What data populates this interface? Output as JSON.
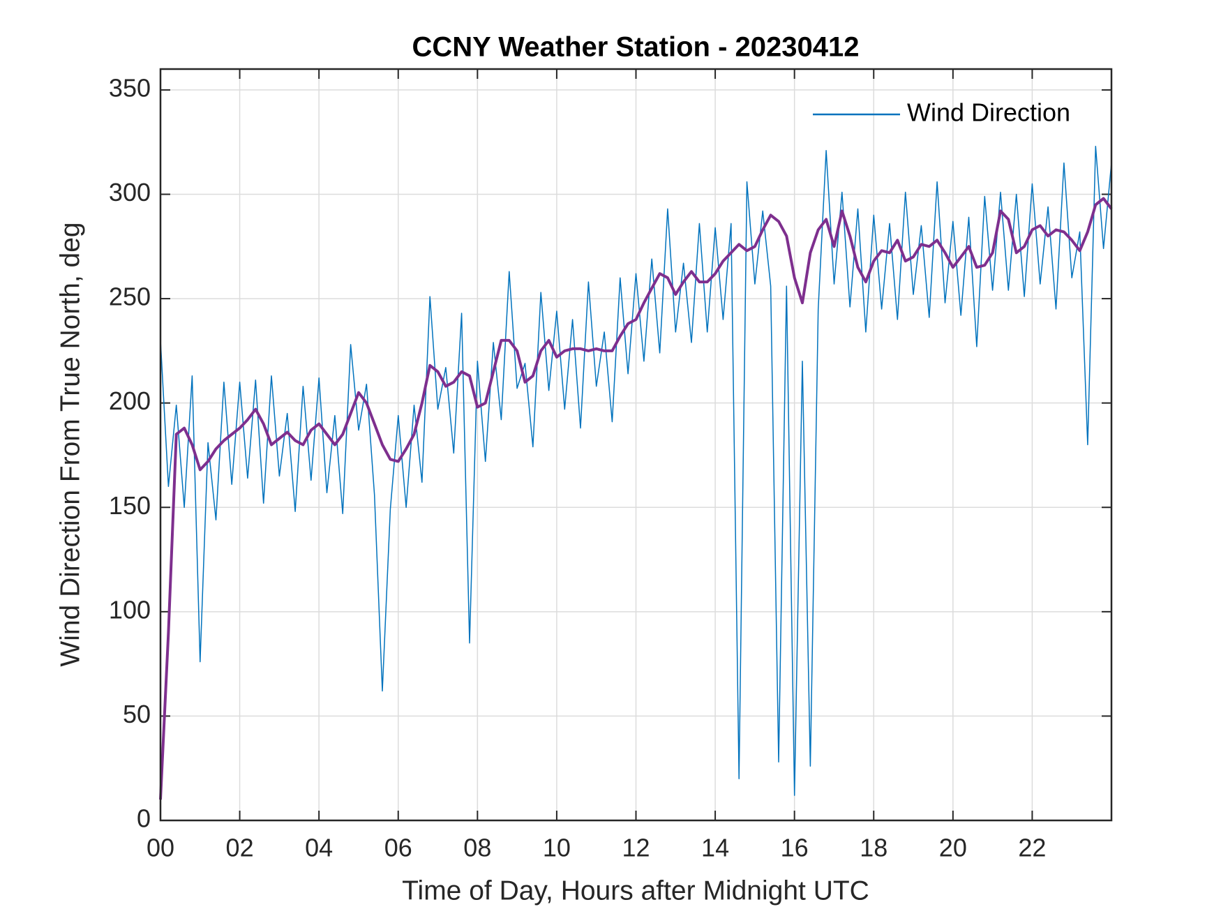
{
  "chart_data": {
    "type": "line",
    "title": "CCNY Weather Station - 20230412",
    "xlabel": "Time of Day, Hours after Midnight UTC",
    "ylabel": "Wind Direction From True North, deg",
    "x": [
      0,
      0.2,
      0.4,
      0.6,
      0.8,
      1,
      1.2,
      1.4,
      1.6,
      1.8,
      2,
      2.2,
      2.4,
      2.6,
      2.8,
      3,
      3.2,
      3.4,
      3.6,
      3.8,
      4,
      4.2,
      4.4,
      4.6,
      4.8,
      5,
      5.2,
      5.4,
      5.6,
      5.8,
      6,
      6.2,
      6.4,
      6.6,
      6.8,
      7,
      7.2,
      7.4,
      7.6,
      7.8,
      8,
      8.2,
      8.4,
      8.6,
      8.8,
      9,
      9.2,
      9.4,
      9.6,
      9.8,
      10,
      10.2,
      10.4,
      10.6,
      10.8,
      11,
      11.2,
      11.4,
      11.6,
      11.8,
      12,
      12.2,
      12.4,
      12.6,
      12.8,
      13,
      13.2,
      13.4,
      13.6,
      13.8,
      14,
      14.2,
      14.4,
      14.6,
      14.8,
      15,
      15.2,
      15.4,
      15.6,
      15.8,
      16,
      16.2,
      16.4,
      16.6,
      16.8,
      17,
      17.2,
      17.4,
      17.6,
      17.8,
      18,
      18.2,
      18.4,
      18.6,
      18.8,
      19,
      19.2,
      19.4,
      19.6,
      19.8,
      20,
      20.2,
      20.4,
      20.6,
      20.8,
      21,
      21.2,
      21.4,
      21.6,
      21.8,
      22,
      22.2,
      22.4,
      22.6,
      22.8,
      23,
      23.2,
      23.4,
      23.6,
      23.8,
      24
    ],
    "series": [
      {
        "name": "Wind Direction",
        "color": "#0072bd",
        "width": 1.5,
        "values": [
          230,
          160,
          199,
          150,
          213,
          76,
          181,
          144,
          210,
          161,
          210,
          164,
          211,
          152,
          213,
          165,
          195,
          148,
          208,
          163,
          212,
          157,
          194,
          147,
          228,
          187,
          209,
          156,
          62,
          149,
          194,
          150,
          199,
          162,
          251,
          197,
          217,
          176,
          243,
          85,
          220,
          172,
          229,
          192,
          263,
          207,
          219,
          179,
          253,
          206,
          244,
          197,
          240,
          188,
          258,
          208,
          234,
          191,
          260,
          214,
          262,
          220,
          269,
          224,
          293,
          234,
          267,
          229,
          286,
          234,
          284,
          240,
          286,
          20,
          306,
          257,
          292,
          256,
          28,
          256,
          12,
          220,
          26,
          245,
          321,
          257,
          301,
          246,
          293,
          234,
          290,
          245,
          286,
          240,
          301,
          252,
          285,
          241,
          306,
          248,
          287,
          242,
          289,
          227,
          299,
          254,
          301,
          254,
          300,
          251,
          305,
          257,
          294,
          245,
          315,
          260,
          282,
          180,
          323,
          274,
          315
        ]
      },
      {
        "color": "#7e2f8e",
        "width": 4,
        "values": [
          10,
          90,
          185,
          188,
          180,
          168,
          172,
          178,
          182,
          185,
          188,
          192,
          197,
          190,
          180,
          183,
          186,
          182,
          180,
          187,
          190,
          185,
          180,
          185,
          195,
          205,
          200,
          190,
          180,
          173,
          172,
          178,
          185,
          200,
          218,
          215,
          208,
          210,
          215,
          213,
          198,
          200,
          215,
          230,
          230,
          225,
          210,
          213,
          225,
          230,
          222,
          225,
          226,
          226,
          225,
          226,
          225,
          225,
          232,
          238,
          240,
          248,
          255,
          262,
          260,
          252,
          258,
          263,
          258,
          258,
          262,
          268,
          272,
          276,
          273,
          275,
          283,
          290,
          287,
          280,
          260,
          248,
          272,
          283,
          288,
          275,
          292,
          280,
          265,
          258,
          268,
          273,
          272,
          278,
          268,
          270,
          276,
          275,
          278,
          272,
          265,
          270,
          275,
          265,
          266,
          272,
          292,
          288,
          272,
          275,
          283,
          285,
          280,
          283,
          282,
          278,
          273,
          282,
          295,
          298,
          293
        ]
      }
    ],
    "xlim": [
      0,
      24
    ],
    "xticks": [
      {
        "value": 0,
        "label": "00"
      },
      {
        "value": 2,
        "label": "02"
      },
      {
        "value": 4,
        "label": "04"
      },
      {
        "value": 6,
        "label": "06"
      },
      {
        "value": 8,
        "label": "08"
      },
      {
        "value": 10,
        "label": "10"
      },
      {
        "value": 12,
        "label": "12"
      },
      {
        "value": 14,
        "label": "14"
      },
      {
        "value": 16,
        "label": "16"
      },
      {
        "value": 18,
        "label": "18"
      },
      {
        "value": 20,
        "label": "20"
      },
      {
        "value": 22,
        "label": "22"
      }
    ],
    "ylim": [
      0,
      360
    ],
    "yticks": [
      0,
      50,
      100,
      150,
      200,
      250,
      300,
      350
    ],
    "grid": true,
    "legend": "top-right"
  }
}
